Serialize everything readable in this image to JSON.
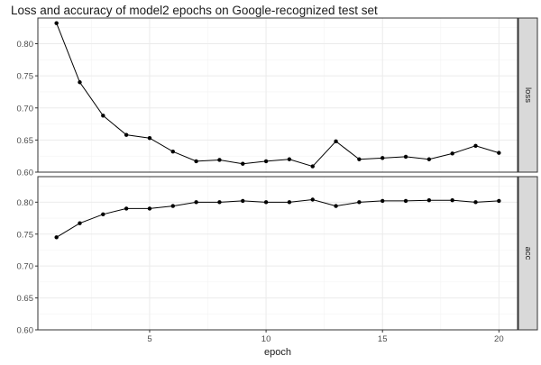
{
  "chart_data": {
    "type": "line",
    "title": "Loss and accuracy of model2 epochs on Google-recognized test set",
    "xlabel": "epoch",
    "ylabel": "",
    "x_ticks": [
      5,
      10,
      15,
      20
    ],
    "xlim": [
      0.2,
      20.8
    ],
    "shared_y": true,
    "ylim": [
      0.6,
      0.84
    ],
    "y_ticks": [
      0.6,
      0.65,
      0.7,
      0.75,
      0.8
    ],
    "y_tick_labels": [
      "0.60",
      "0.65",
      "0.70",
      "0.75",
      "0.80"
    ],
    "grid": true,
    "panel_background": "#ffffff",
    "grid_color": "#ebebeb",
    "strip_color": "#d9d9d9",
    "line_color": "#000000",
    "facets": [
      {
        "strip_label": "loss",
        "x": [
          1,
          2,
          3,
          4,
          5,
          6,
          7,
          8,
          9,
          10,
          11,
          12,
          13,
          14,
          15,
          16,
          17,
          18,
          19,
          20
        ],
        "values": [
          0.832,
          0.74,
          0.688,
          0.658,
          0.653,
          0.632,
          0.617,
          0.619,
          0.613,
          0.617,
          0.62,
          0.609,
          0.648,
          0.62,
          0.622,
          0.624,
          0.62,
          0.629,
          0.641,
          0.63
        ]
      },
      {
        "strip_label": "acc",
        "x": [
          1,
          2,
          3,
          4,
          5,
          6,
          7,
          8,
          9,
          10,
          11,
          12,
          13,
          14,
          15,
          16,
          17,
          18,
          19,
          20
        ],
        "values": [
          0.745,
          0.767,
          0.781,
          0.79,
          0.79,
          0.794,
          0.8,
          0.8,
          0.802,
          0.8,
          0.8,
          0.804,
          0.794,
          0.8,
          0.802,
          0.802,
          0.803,
          0.803,
          0.8,
          0.802
        ]
      }
    ]
  }
}
